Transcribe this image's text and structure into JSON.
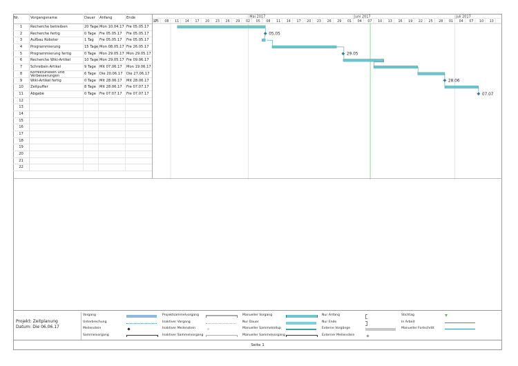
{
  "table": {
    "headers": {
      "nr": "Nr.",
      "name": "Vorgangsname",
      "duration": "Dauer",
      "start": "Anfang",
      "end": "Ende"
    },
    "rows": [
      {
        "nr": "1",
        "name": "Recherche betreiben",
        "duration": "20 Tage",
        "start": "Mon 10.04.17",
        "end": "Fre 05.05.17"
      },
      {
        "nr": "2",
        "name": "Recherche fertig",
        "duration": "0 Tage",
        "start": "Fre 05.05.17",
        "end": "Fre 05.05.17"
      },
      {
        "nr": "3",
        "name": "Aufbau Roboter",
        "duration": "1 Tag",
        "start": "Fre 05.05.17",
        "end": "Fre 05.05.17"
      },
      {
        "nr": "4",
        "name": "Programmierung",
        "duration": "15 Tage",
        "start": "Mon 08.05.17",
        "end": "Fre 26.05.17"
      },
      {
        "nr": "5",
        "name": "Programmierung fertig",
        "duration": "0 Tage",
        "start": "Mon 29.05.17",
        "end": "Mon 29.05.17"
      },
      {
        "nr": "6",
        "name": "Recherche Wiki-Artikel",
        "duration": "10 Tage",
        "start": "Mon 29.05.17",
        "end": "Fre 09.06.17"
      },
      {
        "nr": "7",
        "name": "Schreiben Artikel",
        "duration": "9 Tage",
        "start": "Mit 07.06.17",
        "end": "Mon 19.06.17"
      },
      {
        "nr": "8",
        "name": "Korrekturlesen und Verbesserungen",
        "duration": "6 Tage",
        "start": "Die 20.06.17",
        "end": "Die 27.06.17"
      },
      {
        "nr": "9",
        "name": "Wiki-Artikel fertig",
        "duration": "0 Tage",
        "start": "Mit 28.06.17",
        "end": "Mit 28.06.17"
      },
      {
        "nr": "10",
        "name": "Zeitpuffer",
        "duration": "8 Tage",
        "start": "Mit 28.06.17",
        "end": "Fre 07.07.17"
      },
      {
        "nr": "11",
        "name": "Abgabe",
        "duration": "0 Tage",
        "start": "Fre 07.07.17",
        "end": "Fre 07.07.17"
      },
      {
        "nr": "12",
        "name": "",
        "duration": "",
        "start": "",
        "end": ""
      },
      {
        "nr": "13",
        "name": "",
        "duration": "",
        "start": "",
        "end": ""
      },
      {
        "nr": "14",
        "name": "",
        "duration": "",
        "start": "",
        "end": ""
      },
      {
        "nr": "15",
        "name": "",
        "duration": "",
        "start": "",
        "end": ""
      },
      {
        "nr": "16",
        "name": "",
        "duration": "",
        "start": "",
        "end": ""
      },
      {
        "nr": "17",
        "name": "",
        "duration": "",
        "start": "",
        "end": ""
      },
      {
        "nr": "18",
        "name": "",
        "duration": "",
        "start": "",
        "end": ""
      },
      {
        "nr": "19",
        "name": "",
        "duration": "",
        "start": "",
        "end": ""
      },
      {
        "nr": "20",
        "name": "",
        "duration": "",
        "start": "",
        "end": ""
      },
      {
        "nr": "21",
        "name": "",
        "duration": "",
        "start": "",
        "end": ""
      },
      {
        "nr": "22",
        "name": "",
        "duration": "",
        "start": "",
        "end": ""
      }
    ]
  },
  "timescale": {
    "months": [
      {
        "label": "Mai 2017",
        "start_day": "2017-05-01"
      },
      {
        "label": "Juni 2017",
        "start_day": "2017-06-01"
      },
      {
        "label": "Juli 2017",
        "start_day": "2017-07-01"
      }
    ],
    "first_tick_label": "17",
    "days": [
      "05",
      "08",
      "11",
      "14",
      "17",
      "20",
      "23",
      "26",
      "29",
      "02",
      "05",
      "08",
      "11",
      "14",
      "17",
      "20",
      "23",
      "26",
      "29",
      "01",
      "04",
      "07",
      "10",
      "13",
      "16",
      "19",
      "22",
      "25",
      "28",
      "01",
      "04",
      "07",
      "10",
      "13"
    ],
    "day_dates": [
      "2017-04-05",
      "2017-04-08",
      "2017-04-11",
      "2017-04-14",
      "2017-04-17",
      "2017-04-20",
      "2017-04-23",
      "2017-04-26",
      "2017-04-29",
      "2017-05-02",
      "2017-05-05",
      "2017-05-08",
      "2017-05-11",
      "2017-05-14",
      "2017-05-17",
      "2017-05-20",
      "2017-05-23",
      "2017-05-26",
      "2017-05-29",
      "2017-06-01",
      "2017-06-04",
      "2017-06-07",
      "2017-06-10",
      "2017-06-13",
      "2017-06-16",
      "2017-06-19",
      "2017-06-22",
      "2017-06-25",
      "2017-06-28",
      "2017-07-01",
      "2017-07-04",
      "2017-07-07",
      "2017-07-10",
      "2017-07-13"
    ],
    "status_date": "2017-06-06"
  },
  "gantt": {
    "bars": [
      {
        "row": 1,
        "start": "2017-04-10",
        "end": "2017-05-05"
      },
      {
        "row": 3,
        "start": "2017-05-05",
        "end": "2017-05-05"
      },
      {
        "row": 4,
        "start": "2017-05-08",
        "end": "2017-05-26"
      },
      {
        "row": 6,
        "start": "2017-05-29",
        "end": "2017-06-09"
      },
      {
        "row": 7,
        "start": "2017-06-07",
        "end": "2017-06-19"
      },
      {
        "row": 8,
        "start": "2017-06-20",
        "end": "2017-06-27"
      },
      {
        "row": 10,
        "start": "2017-06-28",
        "end": "2017-07-07"
      }
    ],
    "milestones": [
      {
        "row": 2,
        "date": "2017-05-05",
        "label": "05.05"
      },
      {
        "row": 5,
        "date": "2017-05-29",
        "label": "29.05"
      },
      {
        "row": 9,
        "date": "2017-06-28",
        "label": "28.06"
      },
      {
        "row": 11,
        "date": "2017-07-07",
        "label": "07.07"
      }
    ],
    "colors": {
      "bar": "#6cc6cc",
      "bar_edge": "#3a9ea6",
      "milestone": "#2f7f8a",
      "status_line": "#8fd08f",
      "link": "#3a9ea6"
    }
  },
  "legend": {
    "project_label": "Projekt: Zeitplanung",
    "date_label": "Datum: Die 06.06.17",
    "columns": [
      [
        "Vorgang",
        "Unterbrechung",
        "Meilenstein",
        "Sammelvorgang"
      ],
      [
        "Projektsammelvorgang",
        "Inaktiver Vorgang",
        "Inaktiver Meilenstein",
        "Inaktiver Sammelvorgang"
      ],
      [
        "Manueller Vorgang",
        "Nur Dauer",
        "Manueller Sammelrollup",
        "Manueller Sammelvorgang"
      ],
      [
        "Nur Anfang",
        "Nur Ende",
        "Externe Vorgänge",
        "Externer Meilenstein"
      ],
      [
        "Stichtag",
        "In Arbeit",
        "Manueller Fortschritt"
      ]
    ]
  },
  "footer": {
    "page": "Seite 1"
  }
}
